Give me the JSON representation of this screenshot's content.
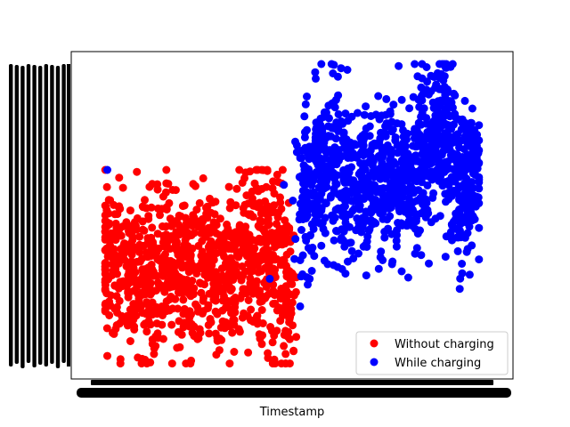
{
  "chart_data": {
    "type": "scatter",
    "title": "",
    "xlabel": "Timestamp",
    "ylabel": "",
    "x_ticks": "dense overlapping categorical timestamp labels (illegible)",
    "y_ticks": "dense overlapping categorical labels (illegible)",
    "grid": false,
    "legend": {
      "placement": "lower-right"
    },
    "xlim": [
      0,
      100
    ],
    "ylim": [
      0,
      100
    ],
    "series": [
      {
        "name": "Without charging",
        "color": "#ff0000",
        "marker": "circle",
        "x_range": [
          4,
          51
        ],
        "y_range": [
          1,
          65
        ],
        "clusters": [
          {
            "x": 5,
            "y": 35,
            "sx": 1.6,
            "sy": 12,
            "n": 90
          },
          {
            "x": 10,
            "y": 32,
            "sx": 2.2,
            "sy": 14,
            "n": 110
          },
          {
            "x": 15,
            "y": 30,
            "sx": 2.0,
            "sy": 13,
            "n": 110
          },
          {
            "x": 20,
            "y": 33,
            "sx": 2.2,
            "sy": 13,
            "n": 110
          },
          {
            "x": 25,
            "y": 31,
            "sx": 2.0,
            "sy": 12,
            "n": 110
          },
          {
            "x": 30,
            "y": 33,
            "sx": 2.2,
            "sy": 13,
            "n": 110
          },
          {
            "x": 35,
            "y": 30,
            "sx": 2.0,
            "sy": 13,
            "n": 110
          },
          {
            "x": 40,
            "y": 38,
            "sx": 1.8,
            "sy": 15,
            "n": 120
          },
          {
            "x": 45,
            "y": 36,
            "sx": 1.6,
            "sy": 15,
            "n": 120
          },
          {
            "x": 49,
            "y": 25,
            "sx": 1.2,
            "sy": 13,
            "n": 80
          }
        ],
        "outliers": []
      },
      {
        "name": "While charging",
        "color": "#0000ff",
        "marker": "circle",
        "x_range": [
          4,
          96
        ],
        "y_range": [
          9,
          100
        ],
        "clusters": [
          {
            "x": 54,
            "y": 58,
            "sx": 1.6,
            "sy": 13,
            "n": 120
          },
          {
            "x": 58,
            "y": 66,
            "sx": 2.0,
            "sy": 13,
            "n": 120
          },
          {
            "x": 63,
            "y": 62,
            "sx": 2.0,
            "sy": 14,
            "n": 120
          },
          {
            "x": 68,
            "y": 58,
            "sx": 2.0,
            "sy": 12,
            "n": 120
          },
          {
            "x": 73,
            "y": 64,
            "sx": 2.0,
            "sy": 12,
            "n": 120
          },
          {
            "x": 78,
            "y": 60,
            "sx": 2.0,
            "sy": 12,
            "n": 120
          },
          {
            "x": 83,
            "y": 72,
            "sx": 2.0,
            "sy": 13,
            "n": 120
          },
          {
            "x": 87,
            "y": 82,
            "sx": 1.6,
            "sy": 11,
            "n": 110
          },
          {
            "x": 91,
            "y": 56,
            "sx": 1.6,
            "sy": 12,
            "n": 110
          },
          {
            "x": 94,
            "y": 66,
            "sx": 1.4,
            "sy": 12,
            "n": 90
          }
        ],
        "outliers": [
          {
            "x": 4.5,
            "y": 65
          },
          {
            "x": 44.5,
            "y": 29
          },
          {
            "x": 74,
            "y": 10
          }
        ]
      }
    ]
  }
}
